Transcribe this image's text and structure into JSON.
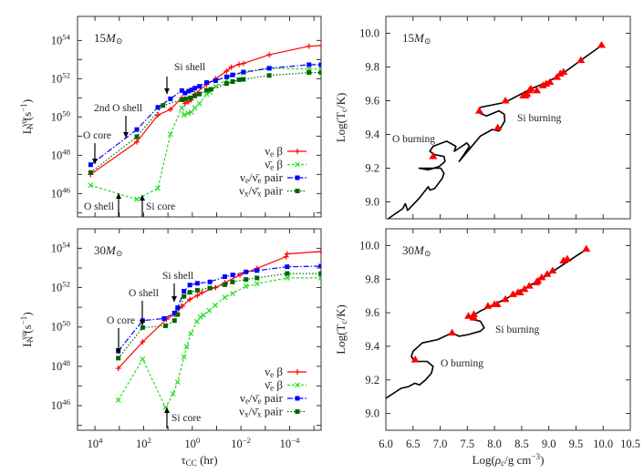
{
  "colors": {
    "nue_beta": "#ff0000",
    "nuebar_beta": "#22dd22",
    "nue_pair": "#0000ff",
    "nux_pair": "#006400",
    "triangle": "#ff0000",
    "track": "#000000"
  },
  "chart_data": [
    {
      "type": "line",
      "panel": "top-left",
      "title": [
        [
          "15",
          ""
        ],
        [
          "M",
          "it"
        ],
        [
          "⊙",
          "sub"
        ]
      ],
      "xscale": "log",
      "yscale": "log",
      "x_reversed": true,
      "xlim": [
        52000,
        5.1e-06
      ],
      "ylim": [
        6e+44,
        1.8e+55
      ],
      "ylabel": [
        [
          "L",
          ""
        ],
        [
          "να",
          "sup"
        ],
        [
          "N",
          "subback"
        ],
        [
          " (s",
          ""
        ],
        [
          "−1",
          "sup"
        ],
        [
          ")",
          ""
        ]
      ],
      "xlabel": [],
      "yticks": [
        46,
        48,
        50,
        52,
        54
      ],
      "xticks": [],
      "legend_position": "bottom-right",
      "series": [
        {
          "name": [
            [
              "ν",
              ""
            ],
            [
              "e",
              "sub"
            ],
            [
              "  β",
              ""
            ]
          ],
          "key": "nue_beta",
          "marker": "plus",
          "dash": "",
          "x": [
            15000.0,
            190,
            26,
            7.9,
            2.7,
            2.0,
            1.4,
            1.1,
            0.79,
            0.26,
            0.11,
            0.039,
            0.025,
            0.012,
            0.0079,
            0.00069,
            1.6e-05,
            5.1e-06
          ],
          "y": [
            1e+47,
            5e+48,
            1.26e+50,
            2.5e+50,
            1e+51,
            5e+50,
            6.3e+50,
            7.9e+50,
            1.58e+51,
            5e+51,
            1e+52,
            2.5e+52,
            4e+52,
            5.6e+52,
            6.3e+52,
            1.78e+53,
            5e+53,
            5.4e+53
          ]
        },
        {
          "name": [
            [
              "ν̄",
              ""
            ],
            [
              "e",
              "sub"
            ],
            [
              "  β",
              ""
            ]
          ],
          "key": "nuebar_beta",
          "marker": "cross",
          "dash": "3,2",
          "x": [
            15000.0,
            190,
            26,
            7.9,
            2.7,
            2.2,
            1.5,
            1.1,
            0.79,
            0.51,
            0.26,
            0.19,
            0.11,
            0.039,
            0.022,
            0.0079,
            0.00069,
            1.6e-05,
            5.1e-06
          ],
          "y": [
            2.7e+46,
            5e+45,
            1.9e+46,
            1.26e+49,
            3e+50,
            1.26e+50,
            1.58e+50,
            1.78e+50,
            3e+50,
            5e+50,
            1.58e+51,
            2e+51,
            4e+51,
            8.7e+51,
            1.58e+52,
            2e+52,
            3.5e+52,
            3.2e+52,
            3.2e+52
          ]
        },
        {
          "name": [
            [
              "ν",
              ""
            ],
            [
              "e",
              "sub"
            ],
            [
              "/ν̄",
              ""
            ],
            [
              "e",
              "sub"
            ],
            [
              " pair",
              ""
            ]
          ],
          "key": "nue_pair",
          "marker": "square",
          "dash": "6,2,1.5,2",
          "x": [
            15000.0,
            190,
            26,
            7.9,
            2.7,
            2.0,
            1.4,
            1.07,
            0.79,
            0.51,
            0.26,
            0.11,
            0.039,
            0.022,
            0.0079,
            0.00069,
            1.6e-05,
            5.1e-06
          ],
          "y": [
            3.2e+47,
            2.2e+49,
            3.2e+50,
            8.9e+50,
            2.4e+51,
            1.78e+51,
            2.24e+51,
            2.6e+51,
            3.2e+51,
            4e+51,
            6.3e+51,
            7.9e+51,
            1.26e+52,
            1.58e+52,
            2.24e+52,
            3.5e+52,
            5.4e+52,
            5.4e+52
          ]
        },
        {
          "name": [
            [
              "ν",
              ""
            ],
            [
              "x",
              "sub"
            ],
            [
              "/ν̄",
              ""
            ],
            [
              "x",
              "sub"
            ],
            [
              " pair",
              ""
            ]
          ],
          "key": "nux_pair",
          "marker": "square",
          "dash": "1.5,2",
          "x": [
            15000.0,
            190,
            16,
            2.7,
            1.9,
            1.2,
            0.79,
            0.51,
            0.26,
            0.17,
            0.039,
            0.022,
            0.012,
            0.0079,
            0.00069,
            1.6e-05,
            5.1e-06
          ],
          "y": [
            1.26e+47,
            9.3e+48,
            4e+50,
            7.9e+50,
            8.9e+50,
            1e+51,
            1.26e+51,
            1.58e+51,
            2.5e+51,
            2.8e+51,
            5.6e+51,
            7.1e+51,
            8.9e+51,
            9.3e+51,
            1.48e+52,
            2.1e+52,
            2.1e+52
          ]
        }
      ],
      "annotations": [
        "Si shell",
        "2nd O shell",
        "O core",
        "O shell",
        "Si core"
      ]
    },
    {
      "type": "line",
      "panel": "bottom-left",
      "title": [
        [
          "30",
          ""
        ],
        [
          "M",
          "it"
        ],
        [
          "⊙",
          "sub"
        ]
      ],
      "xscale": "log",
      "yscale": "log",
      "x_reversed": true,
      "xlim": [
        52000,
        5.1e-06
      ],
      "ylim": [
        5.6e+44,
        9.8e+54
      ],
      "ylabel": [
        [
          "L",
          ""
        ],
        [
          "να",
          "sup"
        ],
        [
          "N",
          "subback"
        ],
        [
          " (s",
          ""
        ],
        [
          "−1",
          "sup"
        ],
        [
          ")",
          ""
        ]
      ],
      "xlabel": [
        [
          "τ",
          ""
        ],
        [
          "CC",
          "sub"
        ],
        [
          " (hr)",
          ""
        ]
      ],
      "yticks": [
        46,
        48,
        50,
        52,
        54
      ],
      "xticks": [
        4,
        2,
        0,
        -2,
        -4
      ],
      "legend_position": "bottom-right",
      "series": [
        {
          "name": [
            [
              "ν",
              ""
            ],
            [
              "e",
              "sub"
            ],
            [
              "  β",
              ""
            ]
          ],
          "key": "nue_beta",
          "marker": "plus",
          "dash": "",
          "x": [
            1100,
            110,
            11.5,
            5.4,
            2.6,
            1.26,
            0.62,
            0.4,
            0.11,
            0.046,
            0.011,
            0.0022,
            0.00014,
            0.000126,
            5.2e-06
          ],
          "y": [
            7.9e+47,
            1.74e+49,
            2.5e+50,
            4.3e+50,
            1.12e+51,
            2.5e+51,
            4e+51,
            5.6e+51,
            1e+52,
            1.78e+52,
            4.4e+52,
            9.5e+52,
            3.7e+53,
            5.2e+53,
            6.8e+53
          ]
        },
        {
          "name": [
            [
              "ν̄",
              ""
            ],
            [
              "e",
              "sub"
            ],
            [
              "  β",
              ""
            ]
          ],
          "key": "nuebar_beta",
          "marker": "cross",
          "dash": "3,2",
          "x": [
            1100,
            110,
            12.6,
            6.2,
            4.0,
            2.2,
            1.7,
            1.15,
            0.65,
            0.46,
            0.35,
            0.2,
            0.115,
            0.046,
            0.022,
            0.0062,
            0.0022,
            0.000126,
            5.2e-06
          ],
          "y": [
            1.9e+46,
            2.3e+48,
            7.9e+45,
            4e+46,
            1.58e+47,
            3e+48,
            1e+49,
            4.6e+49,
            1.9e+50,
            3.2e+50,
            4e+50,
            6.8e+50,
            1.26e+51,
            3.2e+51,
            5e+51,
            1.17e+52,
            1.58e+52,
            3.1e+52,
            3.1e+52
          ]
        },
        {
          "name": [
            [
              "ν",
              ""
            ],
            [
              "e",
              "sub"
            ],
            [
              "/ν̄",
              ""
            ],
            [
              "e",
              "sub"
            ],
            [
              " pair",
              ""
            ]
          ],
          "key": "nue_pair",
          "marker": "square",
          "dash": "6,2,1.5,2",
          "x": [
            1100,
            110,
            14.5,
            5.4,
            4.0,
            2.2,
            1.26,
            0.62,
            0.19,
            0.046,
            0.022,
            0.0062,
            0.0022,
            0.000126,
            5.2e-06
          ],
          "y": [
            6e+48,
            2.1e+50,
            2.7e+50,
            5.1e+50,
            9.5e+50,
            6.6e+51,
            1.35e+52,
            1.66e+52,
            1.95e+52,
            3.6e+52,
            4.4e+52,
            6.3e+52,
            7.4e+52,
            1.15e+53,
            1.23e+53
          ]
        },
        {
          "name": [
            [
              "ν",
              ""
            ],
            [
              "x",
              "sub"
            ],
            [
              "/ν̄",
              ""
            ],
            [
              "x",
              "sub"
            ],
            [
              " pair",
              ""
            ]
          ],
          "key": "nux_pair",
          "marker": "square",
          "dash": "1.5,2",
          "x": [
            1100,
            110,
            12.6,
            5.4,
            4.0,
            2.2,
            1.26,
            0.62,
            0.19,
            0.046,
            0.022,
            0.0062,
            0.0022,
            0.000126,
            5.2e-06
          ],
          "y": [
            2.6e+48,
            9.3e+49,
            1.15e+50,
            2.1e+50,
            4.3e+50,
            3.6e+51,
            5.8e+51,
            7.4e+51,
            9.5e+51,
            1.41e+52,
            1.95e+52,
            2.6e+52,
            3.1e+52,
            5.2e+52,
            5.2e+52
          ]
        }
      ],
      "annotations": [
        "O core",
        "O shell",
        "Si shell",
        "Si core"
      ]
    },
    {
      "type": "line",
      "panel": "top-right",
      "title": [
        [
          "15",
          ""
        ],
        [
          "M",
          "it"
        ],
        [
          "⊙",
          "sub"
        ]
      ],
      "xlim": [
        6.0,
        10.5
      ],
      "ylim": [
        8.9,
        10.1
      ],
      "ylabel": [
        [
          "Log(T",
          ""
        ],
        [
          "c",
          "sub"
        ],
        [
          "/K)",
          ""
        ]
      ],
      "xlabel": [],
      "yticks": [
        "9.0",
        "9.2",
        "9.4",
        "9.6",
        "9.8",
        "10.0"
      ],
      "xticks": [],
      "track": {
        "x": [
          6.04,
          6.31,
          6.36,
          6.4,
          6.61,
          6.78,
          6.81,
          6.9,
          7.04,
          7.07,
          7.01,
          6.84,
          6.61,
          6.78,
          6.98,
          7.09,
          7.07,
          6.9,
          6.81,
          6.87,
          7.12,
          7.29,
          7.26,
          7.4,
          7.49,
          7.54,
          7.35,
          7.74,
          7.96,
          8.08,
          8.19,
          8.18,
          8.08,
          7.85,
          7.71,
          7.73,
          8.19,
          8.67,
          8.97,
          9.25,
          9.59,
          9.98
        ],
        "y": [
          8.9,
          8.96,
          8.99,
          8.95,
          9.02,
          9.09,
          9.07,
          9.08,
          9.14,
          9.17,
          9.2,
          9.2,
          9.2,
          9.19,
          9.21,
          9.24,
          9.27,
          9.28,
          9.3,
          9.33,
          9.36,
          9.33,
          9.3,
          9.33,
          9.35,
          9.33,
          9.24,
          9.39,
          9.43,
          9.42,
          9.48,
          9.52,
          9.54,
          9.51,
          9.53,
          9.56,
          9.59,
          9.67,
          9.71,
          9.76,
          9.84,
          9.93
        ]
      },
      "markers": {
        "x": [
          6.87,
          7.72,
          8.06,
          8.2,
          8.53,
          8.57,
          8.6,
          8.64,
          8.67,
          8.78,
          8.89,
          8.95,
          9.02,
          9.15,
          9.21,
          9.27,
          9.59,
          9.97
        ],
        "y": [
          9.27,
          9.54,
          9.44,
          9.6,
          9.63,
          9.63,
          9.64,
          9.66,
          9.67,
          9.66,
          9.69,
          9.7,
          9.71,
          9.74,
          9.76,
          9.77,
          9.84,
          9.93
        ]
      },
      "annotations": [
        "O burning",
        "Si burning"
      ]
    },
    {
      "type": "line",
      "panel": "bottom-right",
      "title": [
        [
          "30",
          ""
        ],
        [
          "M",
          "it"
        ],
        [
          "⊙",
          "sub"
        ]
      ],
      "xlim": [
        6.0,
        10.5
      ],
      "ylim": [
        8.9,
        10.1
      ],
      "ylabel": [
        [
          "Log(T",
          ""
        ],
        [
          "c",
          "sub"
        ],
        [
          "/K)",
          ""
        ]
      ],
      "xlabel": [
        [
          "Log(",
          ""
        ],
        [
          "ρ",
          "it"
        ],
        [
          "c",
          "sub"
        ],
        [
          "/g cm",
          ""
        ],
        [
          "−3",
          "sup"
        ],
        [
          ")",
          ""
        ]
      ],
      "yticks": [
        "9.0",
        "9.2",
        "9.4",
        "9.6",
        "9.8",
        "10.0"
      ],
      "xticks": [
        "6.0",
        "6.5",
        "7.0",
        "7.5",
        "8.0",
        "8.5",
        "9.0",
        "9.5",
        "10.0",
        "10.5"
      ],
      "track": {
        "x": [
          6.0,
          6.28,
          6.42,
          6.53,
          6.62,
          6.73,
          6.84,
          6.87,
          6.76,
          6.53,
          6.47,
          6.5,
          6.67,
          6.95,
          7.22,
          7.35,
          7.52,
          7.74,
          7.81,
          7.74,
          7.57,
          7.54,
          7.74,
          8.19,
          8.86,
          9.7
        ],
        "y": [
          9.09,
          9.15,
          9.16,
          9.18,
          9.17,
          9.2,
          9.24,
          9.28,
          9.31,
          9.31,
          9.34,
          9.37,
          9.42,
          9.44,
          9.48,
          9.46,
          9.47,
          9.49,
          9.51,
          9.55,
          9.56,
          9.57,
          9.61,
          9.68,
          9.8,
          9.98
        ]
      },
      "markers": {
        "x": [
          6.54,
          7.22,
          7.52,
          7.62,
          7.62,
          7.88,
          8.0,
          8.05,
          8.2,
          8.34,
          8.43,
          8.47,
          8.55,
          8.64,
          8.77,
          8.8,
          8.87,
          8.97,
          9.07,
          9.27,
          9.34,
          9.69
        ],
        "y": [
          9.32,
          9.48,
          9.58,
          9.57,
          9.59,
          9.64,
          9.65,
          9.65,
          9.68,
          9.71,
          9.72,
          9.72,
          9.74,
          9.76,
          9.78,
          9.79,
          9.81,
          9.83,
          9.85,
          9.91,
          9.92,
          9.98
        ]
      },
      "annotations": [
        "O burning",
        "Si burning"
      ]
    }
  ]
}
